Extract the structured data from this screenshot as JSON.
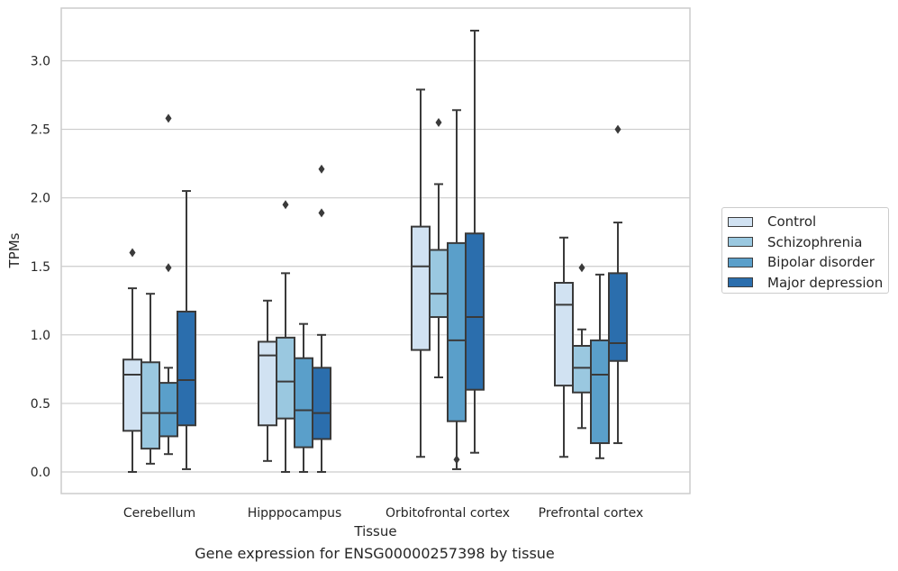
{
  "chart_data": {
    "type": "box",
    "xlabel": "Tissue",
    "ylabel": "TPMs",
    "caption": "Gene expression for ENSG00000257398 by tissue",
    "ylim": [
      -0.15,
      3.38
    ],
    "yticks": [
      0.0,
      0.5,
      1.0,
      1.5,
      2.0,
      2.5,
      3.0
    ],
    "ytick_labels": [
      "0.0",
      "0.5",
      "1.0",
      "1.5",
      "2.0",
      "2.5",
      "3.0"
    ],
    "grid": "horizontal",
    "legend_position": "right",
    "categories": [
      "Cerebellum",
      "Hipppocampus",
      "Orbitofrontal cortex",
      "Prefrontal cortex"
    ],
    "series": [
      {
        "name": "Control",
        "color": "#d1e2f2",
        "boxes": [
          {
            "whisker_low": 0.0,
            "q1": 0.3,
            "median": 0.71,
            "q3": 0.82,
            "whisker_high": 1.34,
            "outliers": [
              1.6
            ]
          },
          {
            "whisker_low": 0.08,
            "q1": 0.34,
            "median": 0.85,
            "q3": 0.95,
            "whisker_high": 1.25,
            "outliers": []
          },
          {
            "whisker_low": 0.11,
            "q1": 0.89,
            "median": 1.5,
            "q3": 1.79,
            "whisker_high": 2.79,
            "outliers": []
          },
          {
            "whisker_low": 0.11,
            "q1": 0.63,
            "median": 1.22,
            "q3": 1.38,
            "whisker_high": 1.71,
            "outliers": []
          }
        ]
      },
      {
        "name": "Schizophrenia",
        "color": "#9ac8e0",
        "boxes": [
          {
            "whisker_low": 0.06,
            "q1": 0.17,
            "median": 0.43,
            "q3": 0.8,
            "whisker_high": 1.3,
            "outliers": []
          },
          {
            "whisker_low": 0.0,
            "q1": 0.39,
            "median": 0.66,
            "q3": 0.98,
            "whisker_high": 1.45,
            "outliers": [
              1.95
            ]
          },
          {
            "whisker_low": 0.69,
            "q1": 1.13,
            "median": 1.3,
            "q3": 1.62,
            "whisker_high": 2.1,
            "outliers": [
              2.55
            ]
          },
          {
            "whisker_low": 0.32,
            "q1": 0.58,
            "median": 0.76,
            "q3": 0.92,
            "whisker_high": 1.04,
            "outliers": [
              1.49
            ]
          }
        ]
      },
      {
        "name": "Bipolar disorder",
        "color": "#5a9fca",
        "boxes": [
          {
            "whisker_low": 0.13,
            "q1": 0.26,
            "median": 0.43,
            "q3": 0.65,
            "whisker_high": 0.76,
            "outliers": [
              1.49,
              2.58
            ]
          },
          {
            "whisker_low": 0.0,
            "q1": 0.18,
            "median": 0.45,
            "q3": 0.83,
            "whisker_high": 1.08,
            "outliers": []
          },
          {
            "whisker_low": 0.02,
            "q1": 0.37,
            "median": 0.96,
            "q3": 1.67,
            "whisker_high": 2.64,
            "outliers": [
              0.09
            ]
          },
          {
            "whisker_low": 0.1,
            "q1": 0.21,
            "median": 0.71,
            "q3": 0.96,
            "whisker_high": 1.44,
            "outliers": []
          }
        ]
      },
      {
        "name": "Major depression",
        "color": "#2b6ead",
        "boxes": [
          {
            "whisker_low": 0.02,
            "q1": 0.34,
            "median": 0.67,
            "q3": 1.17,
            "whisker_high": 2.05,
            "outliers": []
          },
          {
            "whisker_low": 0.0,
            "q1": 0.24,
            "median": 0.43,
            "q3": 0.76,
            "whisker_high": 1.0,
            "outliers": [
              1.89,
              2.21
            ]
          },
          {
            "whisker_low": 0.14,
            "q1": 0.6,
            "median": 1.13,
            "q3": 1.74,
            "whisker_high": 3.22,
            "outliers": []
          },
          {
            "whisker_low": 0.21,
            "q1": 0.81,
            "median": 0.94,
            "q3": 1.45,
            "whisker_high": 1.82,
            "outliers": [
              2.5
            ]
          }
        ]
      }
    ]
  }
}
